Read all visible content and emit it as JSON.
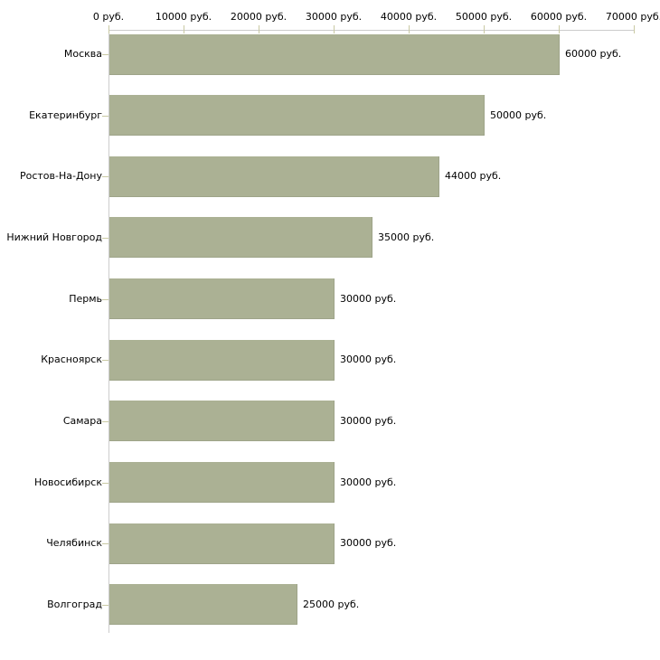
{
  "chart_data": {
    "type": "bar",
    "orientation": "horizontal",
    "title": "",
    "xlabel": "",
    "ylabel": "",
    "categories": [
      "Москва",
      "Екатеринбург",
      "Ростов-На-Дону",
      "Нижний Новгород",
      "Пермь",
      "Красноярск",
      "Самара",
      "Новосибирск",
      "Челябинск",
      "Волгоград"
    ],
    "values": [
      60000,
      50000,
      44000,
      35000,
      30000,
      30000,
      30000,
      30000,
      30000,
      25000
    ],
    "value_labels": [
      "60000 руб.",
      "50000 руб.",
      "44000 руб.",
      "35000 руб.",
      "30000 руб.",
      "30000 руб.",
      "30000 руб.",
      "30000 руб.",
      "30000 руб.",
      "25000 руб."
    ],
    "x_ticks": [
      0,
      10000,
      20000,
      30000,
      40000,
      50000,
      60000,
      70000
    ],
    "x_tick_labels": [
      "0 руб.",
      "10000 руб.",
      "20000 руб.",
      "30000 руб.",
      "40000 руб.",
      "50000 руб.",
      "60000 руб.",
      "70000 руб."
    ],
    "xlim": [
      0,
      70000
    ],
    "grid": false,
    "legend": false,
    "tick_label_position": "top",
    "bar_color": "#abb194",
    "axis_line_color": "#cccccc",
    "tick_mark_color": "#c9c9a3",
    "text_color": "#000000",
    "background_color": "#ffffff"
  }
}
